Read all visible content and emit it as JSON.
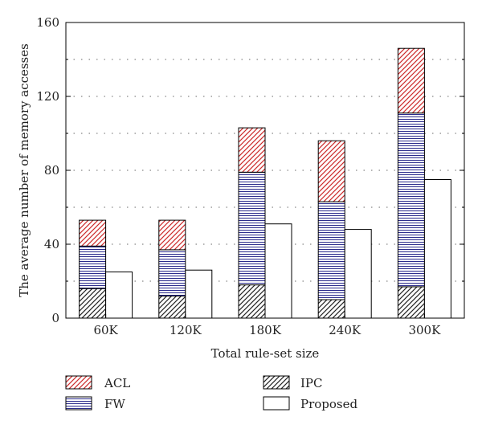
{
  "chart_data": {
    "type": "bar",
    "stacked": true,
    "categories": [
      "60K",
      "120K",
      "180K",
      "240K",
      "300K"
    ],
    "series": [
      {
        "name": "IPC",
        "stack": "existing",
        "values": [
          16,
          12,
          18,
          10,
          17
        ],
        "pattern": "diagonal-black"
      },
      {
        "name": "FW",
        "stack": "existing",
        "values": [
          23,
          25,
          61,
          53,
          94
        ],
        "pattern": "horizontal-blue"
      },
      {
        "name": "ACL",
        "stack": "existing",
        "values": [
          14,
          16,
          24,
          33,
          35
        ],
        "pattern": "diagonal-red"
      },
      {
        "name": "Proposed",
        "stack": "proposed",
        "values": [
          25,
          26,
          51,
          48,
          75
        ],
        "pattern": "white"
      }
    ],
    "xlabel": "Total rule-set size",
    "ylabel": "The average number of memory accesses",
    "ylim": [
      0,
      160
    ],
    "yticks": [
      "0",
      "40",
      "80",
      "120",
      "160"
    ],
    "grid": "dotted-horizontal",
    "legend_position": "bottom",
    "legend": [
      "ACL",
      "IPC",
      "FW",
      "Proposed"
    ],
    "colors": {
      "acl": "#cc2a2a",
      "fw": "#2b2b8c",
      "ipc": "#222222",
      "axis": "#000000"
    }
  }
}
